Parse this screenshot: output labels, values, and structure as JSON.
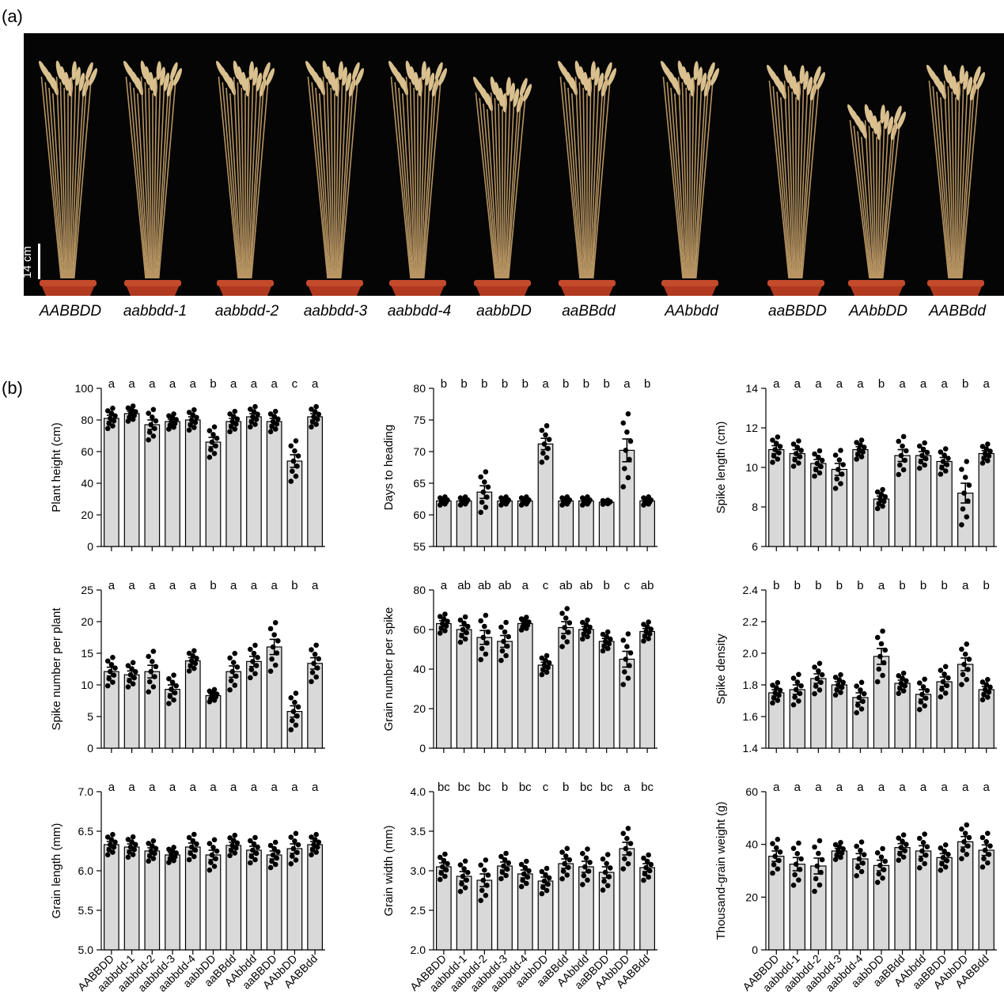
{
  "panels": {
    "a": "(a)",
    "b": "(b)"
  },
  "photo": {
    "scale_bar": "14 cm",
    "genotype_labels": [
      "AABBDD",
      "aabbdd-1",
      "aabbdd-2",
      "aabbdd-3",
      "aabbdd-4",
      "aabbDD",
      "aaBBdd",
      "AAbbdd",
      "aaBBDD",
      "AAbbDD",
      "AABBdd"
    ]
  },
  "colors": {
    "bar_fill": "#d9d9d9",
    "dot": "#000000",
    "photo_background": "#050505",
    "straw": "#c9a36b",
    "pot": "#b0391f"
  },
  "chart_data": [
    {
      "type": "bar",
      "ylabel": "Plant height (cm)",
      "ylim": [
        0,
        100
      ],
      "yticks": [
        0,
        20,
        40,
        60,
        80,
        100
      ],
      "categories": [
        "AABBDD",
        "aabbdd-1",
        "aabbdd-2",
        "aabbdd-3",
        "aabbdd-4",
        "aabbDD",
        "aaBBdd",
        "AAbbdd",
        "aaBBDD",
        "AAbbDD",
        "AABBdd"
      ],
      "values": [
        81,
        84,
        77,
        79,
        80,
        66,
        79,
        82,
        79,
        54,
        82
      ],
      "sem": [
        2,
        1.5,
        3,
        1.5,
        2,
        3,
        2,
        2,
        2,
        4,
        2
      ],
      "letters": [
        "a",
        "a",
        "a",
        "a",
        "a",
        "b",
        "a",
        "a",
        "a",
        "c",
        "a"
      ],
      "show_xlabels": false
    },
    {
      "type": "bar",
      "ylabel": "Days to heading",
      "ylim": [
        55,
        80
      ],
      "yticks": [
        55,
        60,
        65,
        70,
        75,
        80
      ],
      "categories": [
        "AABBDD",
        "aabbdd-1",
        "aabbdd-2",
        "aabbdd-3",
        "aabbdd-4",
        "aabbDD",
        "aaBBdd",
        "AAbbdd",
        "aaBBDD",
        "AAbbDD",
        "AABBdd"
      ],
      "values": [
        62.2,
        62.2,
        63.6,
        62.2,
        62.2,
        71.2,
        62.2,
        62.2,
        62.0,
        70.2,
        62.2
      ],
      "sem": [
        0.2,
        0.2,
        1.0,
        0.2,
        0.2,
        0.9,
        0.2,
        0.2,
        0.1,
        1.8,
        0.2
      ],
      "letters": [
        "b",
        "b",
        "b",
        "b",
        "b",
        "a",
        "b",
        "b",
        "b",
        "a",
        "b"
      ],
      "show_xlabels": false
    },
    {
      "type": "bar",
      "ylabel": "Spike length (cm)",
      "ylim": [
        6,
        14
      ],
      "yticks": [
        6,
        8,
        10,
        12,
        14
      ],
      "categories": [
        "AABBDD",
        "aabbdd-1",
        "aabbdd-2",
        "aabbdd-3",
        "aabbdd-4",
        "aabbDD",
        "aaBBdd",
        "AAbbdd",
        "aaBBDD",
        "AAbbDD",
        "AABBdd"
      ],
      "values": [
        10.9,
        10.7,
        10.2,
        9.9,
        10.9,
        8.4,
        10.6,
        10.6,
        10.3,
        8.7,
        10.7
      ],
      "sem": [
        0.2,
        0.2,
        0.2,
        0.3,
        0.15,
        0.15,
        0.3,
        0.2,
        0.2,
        0.5,
        0.15
      ],
      "letters": [
        "a",
        "a",
        "a",
        "a",
        "a",
        "b",
        "a",
        "a",
        "a",
        "b",
        "a"
      ],
      "show_xlabels": false
    },
    {
      "type": "bar",
      "ylabel": "Spike number per plant",
      "ylim": [
        0,
        25
      ],
      "yticks": [
        0,
        5,
        10,
        15,
        20,
        25
      ],
      "categories": [
        "AABBDD",
        "aabbdd-1",
        "aabbdd-2",
        "aabbdd-3",
        "aabbdd-4",
        "aabbDD",
        "aaBBdd",
        "AAbbdd",
        "aaBBDD",
        "AAbbDD",
        "AABBdd"
      ],
      "values": [
        12.1,
        11.6,
        12.1,
        9.3,
        13.8,
        8.3,
        12.1,
        13.7,
        16.0,
        5.8,
        13.4
      ],
      "sem": [
        0.7,
        0.6,
        1.0,
        0.7,
        0.5,
        0.3,
        0.9,
        0.8,
        1.2,
        0.9,
        0.9
      ],
      "letters": [
        "a",
        "a",
        "a",
        "a",
        "a",
        "b",
        "a",
        "a",
        "a",
        "b",
        "a"
      ],
      "show_xlabels": false
    },
    {
      "type": "bar",
      "ylabel": "Grain number per spike",
      "ylim": [
        0,
        80
      ],
      "yticks": [
        0,
        20,
        40,
        60,
        80
      ],
      "categories": [
        "AABBDD",
        "aabbdd-1",
        "aabbdd-2",
        "aabbdd-3",
        "aabbdd-4",
        "aabbDD",
        "aaBBdd",
        "AAbbdd",
        "aaBBDD",
        "AAbbDD",
        "AABBdd"
      ],
      "values": [
        63,
        60,
        56,
        54,
        63,
        42,
        61,
        60,
        54,
        45,
        59
      ],
      "sem": [
        1.5,
        2,
        3.5,
        3,
        1,
        1.5,
        3,
        1.5,
        1.5,
        4,
        1.5
      ],
      "letters": [
        "a",
        "ab",
        "ab",
        "ab",
        "a",
        "c",
        "ab",
        "ab",
        "b",
        "c",
        "ab"
      ],
      "show_xlabels": false
    },
    {
      "type": "bar",
      "ylabel": "Spike density",
      "ylim": [
        1.4,
        2.4
      ],
      "yticks": [
        1.4,
        1.6,
        1.8,
        2.0,
        2.2,
        2.4
      ],
      "categories": [
        "AABBDD",
        "aabbdd-1",
        "aabbdd-2",
        "aabbdd-3",
        "aabbdd-4",
        "aabbDD",
        "aaBBdd",
        "AAbbdd",
        "aaBBDD",
        "AAbbDD",
        "AABBdd"
      ],
      "values": [
        1.75,
        1.77,
        1.84,
        1.8,
        1.72,
        1.98,
        1.81,
        1.74,
        1.82,
        1.93,
        1.77
      ],
      "sem": [
        0.02,
        0.03,
        0.03,
        0.02,
        0.03,
        0.05,
        0.02,
        0.03,
        0.03,
        0.04,
        0.02
      ],
      "letters": [
        "b",
        "b",
        "b",
        "b",
        "b",
        "a",
        "b",
        "b",
        "b",
        "a",
        "b"
      ],
      "show_xlabels": false
    },
    {
      "type": "bar",
      "ylabel": "Grain length (mm)",
      "ylim": [
        5.0,
        7.0
      ],
      "yticks": [
        5.0,
        5.5,
        6.0,
        6.5,
        7.0
      ],
      "categories": [
        "AABBDD",
        "aabbdd-1",
        "aabbdd-2",
        "aabbdd-3",
        "aabbdd-4",
        "aabbDD",
        "aaBBdd",
        "AAbbdd",
        "aaBBDD",
        "AAbbDD",
        "AABBdd"
      ],
      "values": [
        6.33,
        6.3,
        6.25,
        6.2,
        6.3,
        6.2,
        6.32,
        6.26,
        6.2,
        6.28,
        6.33
      ],
      "sem": [
        0.04,
        0.04,
        0.04,
        0.03,
        0.05,
        0.06,
        0.04,
        0.05,
        0.05,
        0.06,
        0.04
      ],
      "letters": [
        "a",
        "a",
        "a",
        "a",
        "a",
        "a",
        "a",
        "a",
        "a",
        "a",
        "a"
      ],
      "show_xlabels": true
    },
    {
      "type": "bar",
      "ylabel": "Grain width (mm)",
      "ylim": [
        2.0,
        4.0
      ],
      "yticks": [
        2.0,
        2.5,
        3.0,
        3.5,
        4.0
      ],
      "categories": [
        "AABBDD",
        "aabbdd-1",
        "aabbdd-2",
        "aabbdd-3",
        "aabbdd-4",
        "aabbDD",
        "aaBBdd",
        "AAbbdd",
        "aaBBDD",
        "AAbbDD",
        "AABBdd"
      ],
      "values": [
        3.05,
        2.93,
        2.88,
        3.06,
        2.96,
        2.87,
        3.09,
        3.05,
        2.98,
        3.28,
        3.04
      ],
      "sem": [
        0.05,
        0.06,
        0.08,
        0.05,
        0.05,
        0.05,
        0.06,
        0.07,
        0.07,
        0.08,
        0.05
      ],
      "letters": [
        "bc",
        "bc",
        "bc",
        "b",
        "bc",
        "c",
        "b",
        "bc",
        "bc",
        "a",
        "bc"
      ],
      "show_xlabels": true
    },
    {
      "type": "bar",
      "ylabel": "Thousand-grain weight (g)",
      "ylim": [
        0,
        60
      ],
      "yticks": [
        0,
        20,
        40,
        60
      ],
      "categories": [
        "AABBDD",
        "aabbdd-1",
        "aabbdd-2",
        "aabbdd-3",
        "aabbdd-4",
        "aabbDD",
        "aaBBdd",
        "AAbbdd",
        "aaBBDD",
        "AAbbDD",
        "AABBdd"
      ],
      "values": [
        35.5,
        32.5,
        31.8,
        37.5,
        34.5,
        32.0,
        38.8,
        37.5,
        35.0,
        41.0,
        37.8
      ],
      "sem": [
        2,
        2.5,
        3,
        1,
        2,
        2,
        1.5,
        2,
        1.5,
        2,
        2
      ],
      "letters": [
        "a",
        "a",
        "a",
        "a",
        "a",
        "a",
        "a",
        "a",
        "a",
        "a",
        "a"
      ],
      "show_xlabels": true
    }
  ]
}
